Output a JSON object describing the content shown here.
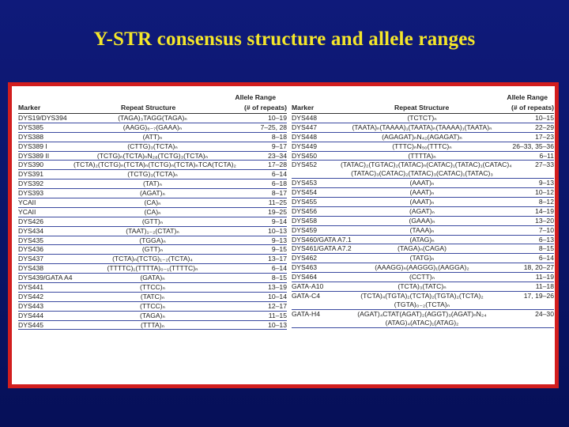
{
  "title": "Y-STR consensus structure and allele ranges",
  "table_headers": {
    "marker": "Marker",
    "structure": "Repeat Structure",
    "range_top": "Allele Range",
    "range_bottom": "(# of repeats)"
  },
  "left_rows": [
    {
      "marker": "DYS19/DYS394",
      "structure": "(TAGA)₃TAGG(TAGA)ₙ",
      "range": "10–19"
    },
    {
      "marker": "DYS385",
      "structure": "(AAGG)₆₋₇(GAAA)ₙ",
      "range": "7–25, 28"
    },
    {
      "marker": "DYS388",
      "structure": "(ATT)ₙ",
      "range": "8–18"
    },
    {
      "marker": "DYS389 I",
      "structure": "(CTTG)₃(TCTA)ₙ",
      "range": "9–17"
    },
    {
      "marker": "DYS389 II",
      "structure": "(TCTG)ₙ(TCTA)ₙN₂₈(TCTG)₃(TCTA)ₙ",
      "range": "23–34"
    },
    {
      "marker": "DYS390",
      "structure": "(TCTA)₂(TCTG)ₙ(TCTA)ₙ(TCTG)ₙ(TCTA)ₙTCA(TCTA)₂",
      "range": "17–28"
    },
    {
      "marker": "DYS391",
      "structure": "(TCTG)₃(TCTA)ₙ",
      "range": "6–14"
    },
    {
      "marker": "DYS392",
      "structure": "(TAT)ₙ",
      "range": "6–18"
    },
    {
      "marker": "DYS393",
      "structure": "(AGAT)ₙ",
      "range": "8–17"
    },
    {
      "marker": "YCAII",
      "structure": "(CA)ₙ",
      "range": "11–25"
    },
    {
      "marker": "YCAII",
      "structure": "(CA)ₙ",
      "range": "19–25"
    },
    {
      "marker": "DYS426",
      "structure": "(GTT)ₙ",
      "range": "9–14"
    },
    {
      "marker": "DYS434",
      "structure": "(TAAT)₁₋₂(CTAT)ₙ",
      "range": "10–13"
    },
    {
      "marker": "DYS435",
      "structure": "(TGGA)ₙ",
      "range": "9–13"
    },
    {
      "marker": "DYS436",
      "structure": "(GTT)ₙ",
      "range": "9–15"
    },
    {
      "marker": "DYS437",
      "structure": "(TCTA)ₙ(TCTG)₁₋₂(TCTA)₄",
      "range": "13–17"
    },
    {
      "marker": "DYS438",
      "structure": "(TTTTC)₁(TTTTA)₀₋₁(TTTTC)ₙ",
      "range": "6–14"
    },
    {
      "marker": "DYS439/GATA A4",
      "structure": "(GATA)ₙ",
      "range": "8–15"
    },
    {
      "marker": "DYS441",
      "structure": "(TTCC)ₙ",
      "range": "13–19"
    },
    {
      "marker": "DYS442",
      "structure": "(TATC)ₙ",
      "range": "10–14"
    },
    {
      "marker": "DYS443",
      "structure": "(TTCC)ₙ",
      "range": "12–17"
    },
    {
      "marker": "DYS444",
      "structure": "(TAGA)ₙ",
      "range": "11–15"
    },
    {
      "marker": "DYS445",
      "structure": "(TTTA)ₙ",
      "range": "10–13"
    }
  ],
  "right_rows": [
    {
      "marker": "DYS448",
      "structure": "(TCTCT)ₙ",
      "range": "10–15"
    },
    {
      "marker": "DYS447",
      "structure": "(TAATA)ₙ(TAAAA)₁(TAATA)ₙ(TAAAA)₁(TAATA)ₙ",
      "range": "22–29"
    },
    {
      "marker": "DYS448",
      "structure": "(AGAGAT)ₙN₄₂(AGAGAT)ₙ",
      "range": "17–23"
    },
    {
      "marker": "DYS449",
      "structure": "(TTTC)ₙN₅₀(TTTC)ₙ",
      "range": "26–33, 35–36"
    },
    {
      "marker": "DYS450",
      "structure": "(TTTTA)ₙ",
      "range": "6–11"
    },
    {
      "marker": "DYS452",
      "structure": "(TATAC)₂(TGTAC)₂(TATAC)ₙ(CATAC)₁(TATAC)₁(CATAC)₄",
      "structure2": "(TATAC)₃(CATAC)₂(TATAC)₃(CATAC)₁(TATAC)₃",
      "range": "27–33"
    },
    {
      "marker": "DYS453",
      "structure": "(AAAT)ₙ",
      "range": "9–13"
    },
    {
      "marker": "DYS454",
      "structure": "(AAAT)ₙ",
      "range": "10–12"
    },
    {
      "marker": "DYS455",
      "structure": "(AAAT)ₙ",
      "range": "8–12"
    },
    {
      "marker": "DYS456",
      "structure": "(AGAT)ₙ",
      "range": "14–19"
    },
    {
      "marker": "DYS458",
      "structure": "(GAAA)ₙ",
      "range": "13–20"
    },
    {
      "marker": "DYS459",
      "structure": "(TAAA)ₙ",
      "range": "7–10"
    },
    {
      "marker": "DYS460/GATA A7.1",
      "structure": "(ATAG)ₙ",
      "range": "6–13"
    },
    {
      "marker": "DYS461/GATA A7.2",
      "structure": "(TAGA)ₙ(CAGA)",
      "range": "8–15"
    },
    {
      "marker": "DYS462",
      "structure": "(TATG)ₙ",
      "range": "6–14"
    },
    {
      "marker": "DYS463",
      "structure": "(AAAGG)ₙ(AAGGG)₁(AAGGA)₂",
      "range": "18, 20–27"
    },
    {
      "marker": "DYS464",
      "structure": "(CCTT)ₙ",
      "range": "11–19"
    },
    {
      "marker": "GATA-A10",
      "structure": "(TCTA)₃(TATC)ₙ",
      "range": "11–18"
    },
    {
      "marker": "GATA-C4",
      "structure": "(TCTA)₄(TGTA)₂(TCTA)₂(TGTA)₂(TCTA)₂",
      "structure2": "(TGTA)₀₋₂(TCTA)ₙ",
      "range": "17, 19–26"
    },
    {
      "marker": "GATA-H4",
      "structure": "(AGAT)₄CTAT(AGAT)₂(AGGT)₃(AGAT)ₙN₂₄",
      "structure2": "(ATAG)₄(ATAC)₁(ATAG)₂",
      "range": "24–30"
    }
  ]
}
